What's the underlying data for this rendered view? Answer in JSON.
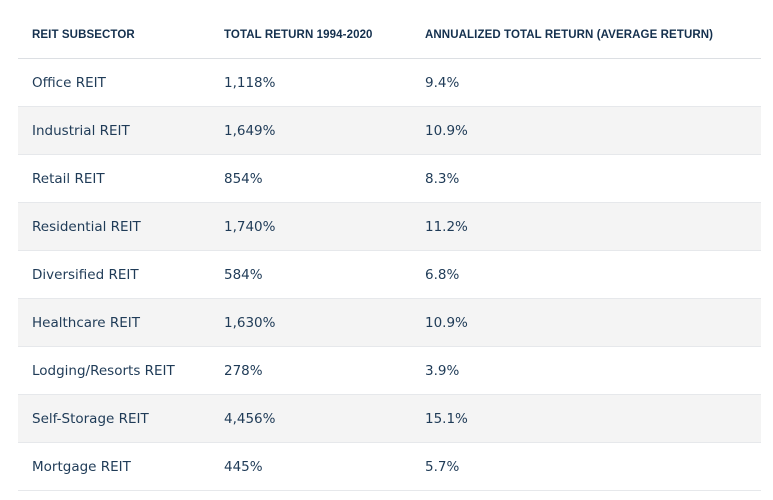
{
  "table": {
    "headers": [
      "REIT SUBSECTOR",
      "TOTAL RETURN 1994-2020",
      "ANNUALIZED TOTAL RETURN (AVERAGE RETURN)"
    ],
    "rows": [
      [
        "Office REIT",
        "1,118%",
        "9.4%"
      ],
      [
        "Industrial REIT",
        "1,649%",
        "10.9%"
      ],
      [
        "Retail REIT",
        "854%",
        "8.3%"
      ],
      [
        "Residential REIT",
        "1,740%",
        "11.2%"
      ],
      [
        "Diversified REIT",
        "584%",
        "6.8%"
      ],
      [
        "Healthcare REIT",
        "1,630%",
        "10.9%"
      ],
      [
        "Lodging/Resorts REIT",
        "278%",
        "3.9%"
      ],
      [
        "Self-Storage REIT",
        "4,456%",
        "15.1%"
      ],
      [
        "Mortgage REIT",
        "445%",
        "5.7%"
      ]
    ]
  }
}
